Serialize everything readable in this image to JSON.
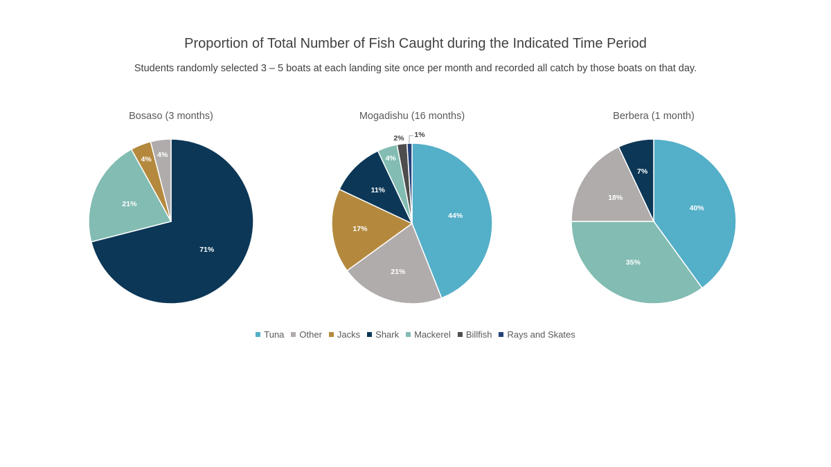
{
  "title": "Proportion of Total Number of Fish Caught during the Indicated Time Period",
  "subtitle": "Students randomly selected 3 – 5 boats at each landing site once per month and recorded all catch by those boats on that day.",
  "colors": {
    "Tuna": "#54afc8",
    "Other": "#b0acab",
    "Jacks": "#b4893e",
    "Shark": "#0c3757",
    "Mackerel": "#82bcb2",
    "Billfish": "#4d4d4d",
    "Rays and Skates": "#25417a"
  },
  "legend": [
    "Tuna",
    "Other",
    "Jacks",
    "Shark",
    "Mackerel",
    "Billfish",
    "Rays and Skates"
  ],
  "chart_data": [
    {
      "type": "pie",
      "title": "Bosaso (3 months)",
      "slices": [
        {
          "label": "Shark",
          "value": 71,
          "display": "71%"
        },
        {
          "label": "Mackerel",
          "value": 21,
          "display": "21%"
        },
        {
          "label": "Jacks",
          "value": 4,
          "display": "4%"
        },
        {
          "label": "Other",
          "value": 4,
          "display": "4%"
        }
      ]
    },
    {
      "type": "pie",
      "title": "Mogadishu (16 months)",
      "slices": [
        {
          "label": "Tuna",
          "value": 44,
          "display": "44%"
        },
        {
          "label": "Other",
          "value": 21,
          "display": "21%"
        },
        {
          "label": "Jacks",
          "value": 17,
          "display": "17%"
        },
        {
          "label": "Shark",
          "value": 11,
          "display": "11%"
        },
        {
          "label": "Mackerel",
          "value": 4,
          "display": "4%"
        },
        {
          "label": "Billfish",
          "value": 2,
          "display": "2%"
        },
        {
          "label": "Rays and Skates",
          "value": 1,
          "display": "1%"
        }
      ]
    },
    {
      "type": "pie",
      "title": "Berbera (1 month)",
      "slices": [
        {
          "label": "Tuna",
          "value": 40,
          "display": "40%"
        },
        {
          "label": "Mackerel",
          "value": 35,
          "display": "35%"
        },
        {
          "label": "Other",
          "value": 18,
          "display": "18%"
        },
        {
          "label": "Shark",
          "value": 7,
          "display": "7%"
        }
      ]
    }
  ]
}
